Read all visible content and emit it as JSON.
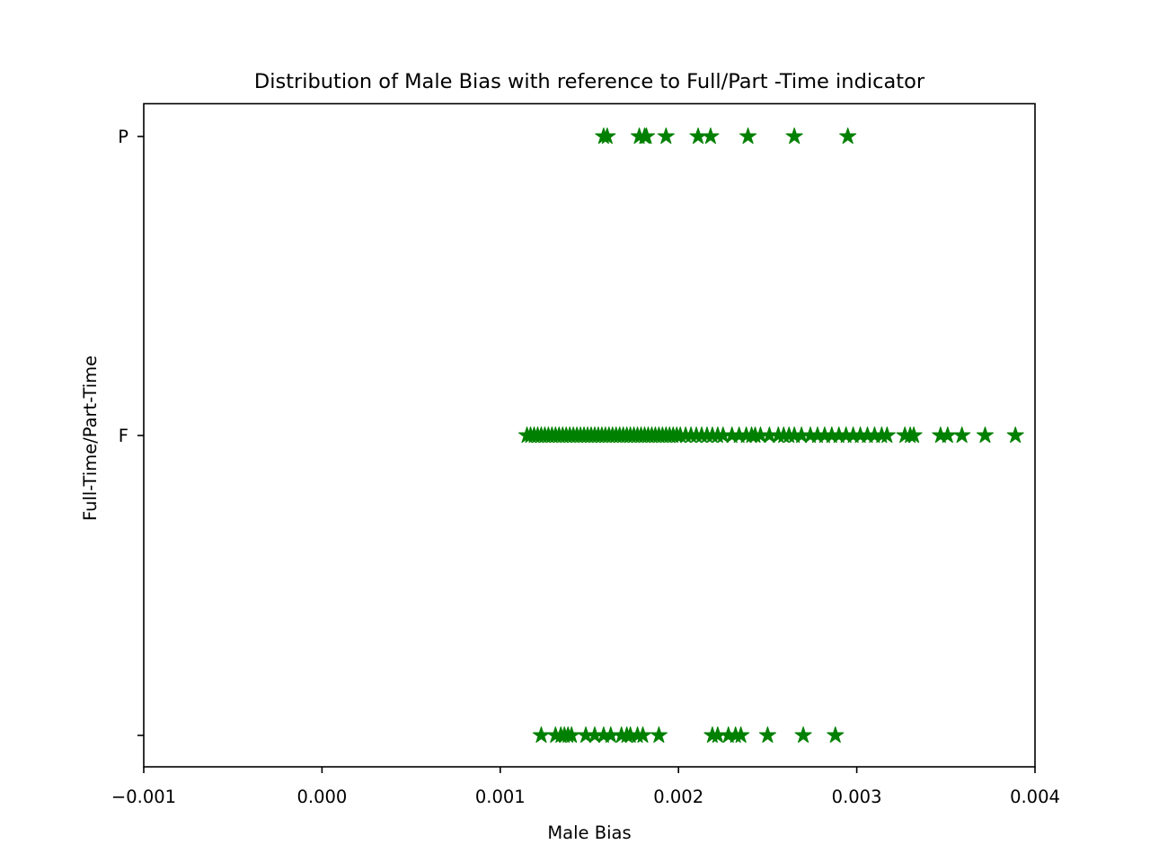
{
  "chart_data": {
    "type": "scatter",
    "title": "Distribution of Male Bias with reference to Full/Part -Time indicator",
    "xlabel": "Male Bias",
    "ylabel": "Full-Time/Part-Time",
    "xlim": [
      -0.001,
      0.004
    ],
    "x_ticks": [
      -0.001,
      0.0,
      0.001,
      0.002,
      0.003,
      0.004
    ],
    "x_tick_labels": [
      "−0.001",
      "0.000",
      "0.001",
      "0.002",
      "0.003",
      "0.004"
    ],
    "categories": [
      "P",
      "F",
      ""
    ],
    "marker": "star",
    "color": "#008000",
    "grid": false,
    "series": [
      {
        "category": "P",
        "values": [
          0.00158,
          0.0016,
          0.00178,
          0.00181,
          0.00182,
          0.00193,
          0.00211,
          0.00218,
          0.00239,
          0.00265,
          0.00295
        ]
      },
      {
        "category": "F",
        "values": [
          0.00115,
          0.00117,
          0.00119,
          0.00121,
          0.00123,
          0.00125,
          0.00127,
          0.00129,
          0.00131,
          0.00133,
          0.00135,
          0.00137,
          0.00139,
          0.00141,
          0.00143,
          0.00145,
          0.00147,
          0.00149,
          0.00151,
          0.00153,
          0.00155,
          0.00157,
          0.00159,
          0.00161,
          0.00163,
          0.00165,
          0.00167,
          0.00169,
          0.00171,
          0.00173,
          0.00175,
          0.00177,
          0.00179,
          0.00181,
          0.00183,
          0.00185,
          0.00187,
          0.00189,
          0.00191,
          0.00193,
          0.00195,
          0.00197,
          0.00199,
          0.00201,
          0.00204,
          0.00207,
          0.0021,
          0.00213,
          0.00216,
          0.00219,
          0.00222,
          0.00225,
          0.0023,
          0.00234,
          0.00238,
          0.00241,
          0.00243,
          0.00246,
          0.00251,
          0.00256,
          0.00259,
          0.00262,
          0.00265,
          0.00269,
          0.00274,
          0.00278,
          0.00282,
          0.00286,
          0.0029,
          0.00294,
          0.00298,
          0.00302,
          0.00306,
          0.0031,
          0.00314,
          0.00317,
          0.00327,
          0.0033,
          0.00332,
          0.00347,
          0.00351,
          0.00359,
          0.00372,
          0.00389
        ]
      },
      {
        "category": "",
        "values": [
          0.00123,
          0.00131,
          0.00134,
          0.00136,
          0.00138,
          0.0014,
          0.00148,
          0.00153,
          0.00158,
          0.00162,
          0.00168,
          0.00171,
          0.00173,
          0.00177,
          0.0018,
          0.00189,
          0.00219,
          0.00222,
          0.00228,
          0.00232,
          0.00235,
          0.0025,
          0.0027,
          0.00288
        ]
      }
    ]
  }
}
